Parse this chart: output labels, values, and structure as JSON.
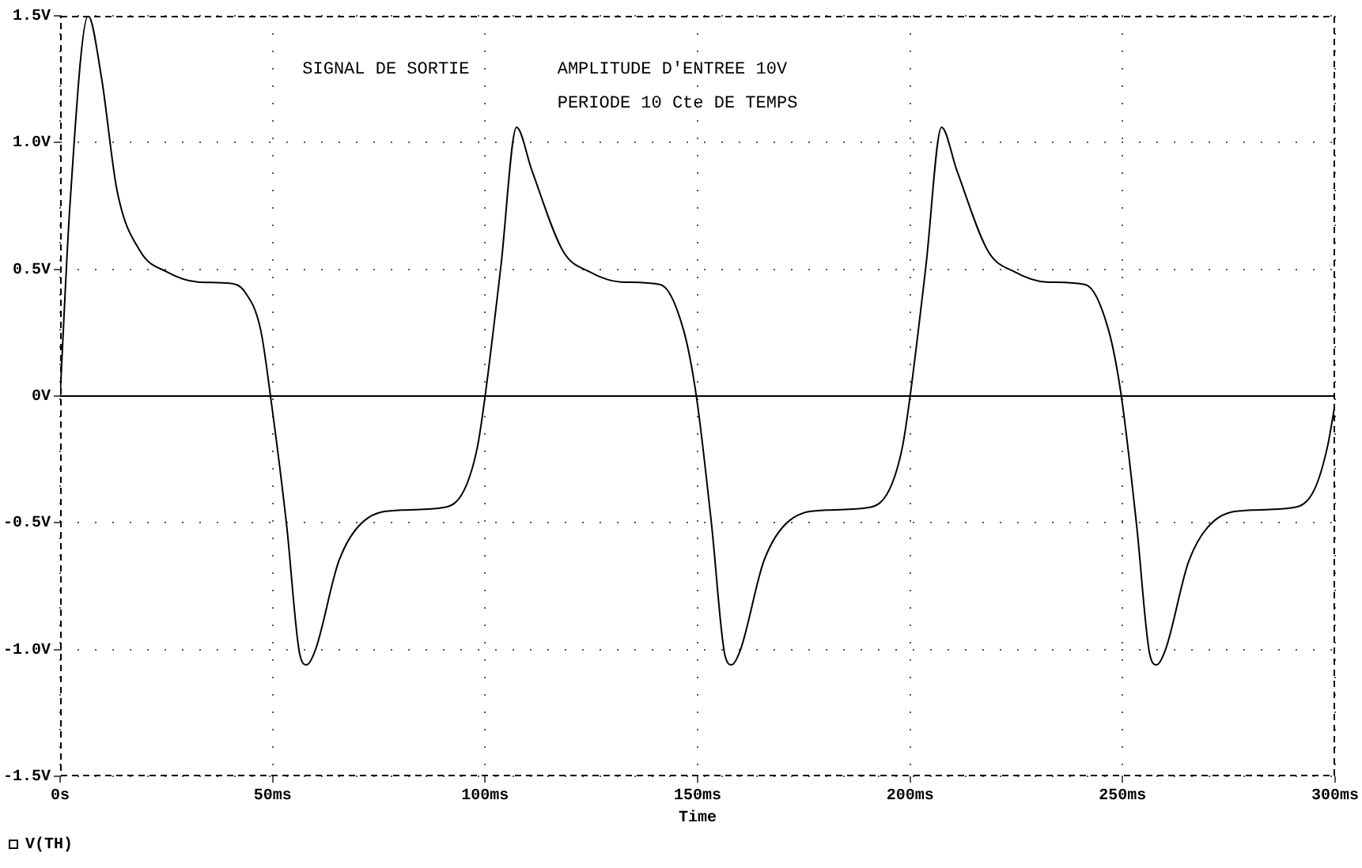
{
  "chart_data": {
    "type": "line",
    "xlabel": "Time",
    "annotations": [
      "SIGNAL DE SORTIE",
      "AMPLITUDE D'ENTREE 10V",
      "PERIODE 10 Cte DE TEMPS"
    ],
    "x": [
      0,
      2.3,
      6.6,
      9.7,
      13.4,
      18.9,
      25.1,
      32.4,
      39.8,
      43.5,
      47.2,
      49.5,
      53.3,
      56.4,
      58,
      60.1,
      65.6,
      71.7,
      80.4,
      90.2,
      95.1,
      98.2,
      100,
      103.7,
      107.4,
      111,
      118.4,
      124.6,
      132,
      141.2,
      146.7,
      149.7,
      153.3,
      156.4,
      158,
      160.1,
      165.6,
      171.7,
      180.4,
      190.2,
      195.1,
      198.2,
      200,
      203.7,
      207.4,
      211,
      218.4,
      224.6,
      232,
      241.2,
      246.7,
      249.7,
      253.3,
      256.4,
      258,
      260.1,
      265.6,
      271.7,
      280.4,
      290.2,
      295.1,
      298.2,
      300
    ],
    "series": [
      {
        "name": "V(TH)",
        "color": "#000000",
        "values": [
          0,
          0.75,
          1.5,
          1.26,
          0.81,
          0.57,
          0.49,
          0.45,
          0.445,
          0.41,
          0.26,
          0,
          -0.51,
          -1.02,
          -1.06,
          -1,
          -0.65,
          -0.49,
          -0.45,
          -0.44,
          -0.37,
          -0.2,
          0,
          0.51,
          1.06,
          0.89,
          0.57,
          0.49,
          0.45,
          0.44,
          0.26,
          0,
          -0.51,
          -1.02,
          -1.06,
          -1,
          -0.65,
          -0.49,
          -0.45,
          -0.44,
          -0.37,
          -0.2,
          0,
          0.51,
          1.06,
          0.89,
          0.57,
          0.49,
          0.45,
          0.44,
          0.26,
          0,
          -0.51,
          -1.02,
          -1.06,
          -1,
          -0.65,
          -0.49,
          -0.45,
          -0.44,
          -0.37,
          -0.2,
          -0.03
        ]
      }
    ],
    "xlim": [
      0,
      300
    ],
    "xticks": [
      {
        "value": 0,
        "label": "0s"
      },
      {
        "value": 50,
        "label": "50ms"
      },
      {
        "value": 100,
        "label": "100ms"
      },
      {
        "value": 150,
        "label": "150ms"
      },
      {
        "value": 200,
        "label": "200ms"
      },
      {
        "value": 250,
        "label": "250ms"
      },
      {
        "value": 300,
        "label": "300ms"
      }
    ],
    "ylim": [
      -1.5,
      1.5
    ],
    "yticks": [
      {
        "value": -1.5,
        "label": "-1.5V"
      },
      {
        "value": -1,
        "label": "-1.0V"
      },
      {
        "value": -0.5,
        "label": "-0.5V"
      },
      {
        "value": 0,
        "label": "0V"
      },
      {
        "value": 0.5,
        "label": "0.5V"
      },
      {
        "value": 1,
        "label": "1.0V"
      },
      {
        "value": 1.5,
        "label": "1.5V"
      }
    ],
    "ref_lines": [
      {
        "axis": "y",
        "value": 0,
        "color": "#000000",
        "line_style": "solid"
      }
    ],
    "grid": true,
    "legend": "bottom left",
    "marker": "none",
    "line_style": "solid"
  }
}
